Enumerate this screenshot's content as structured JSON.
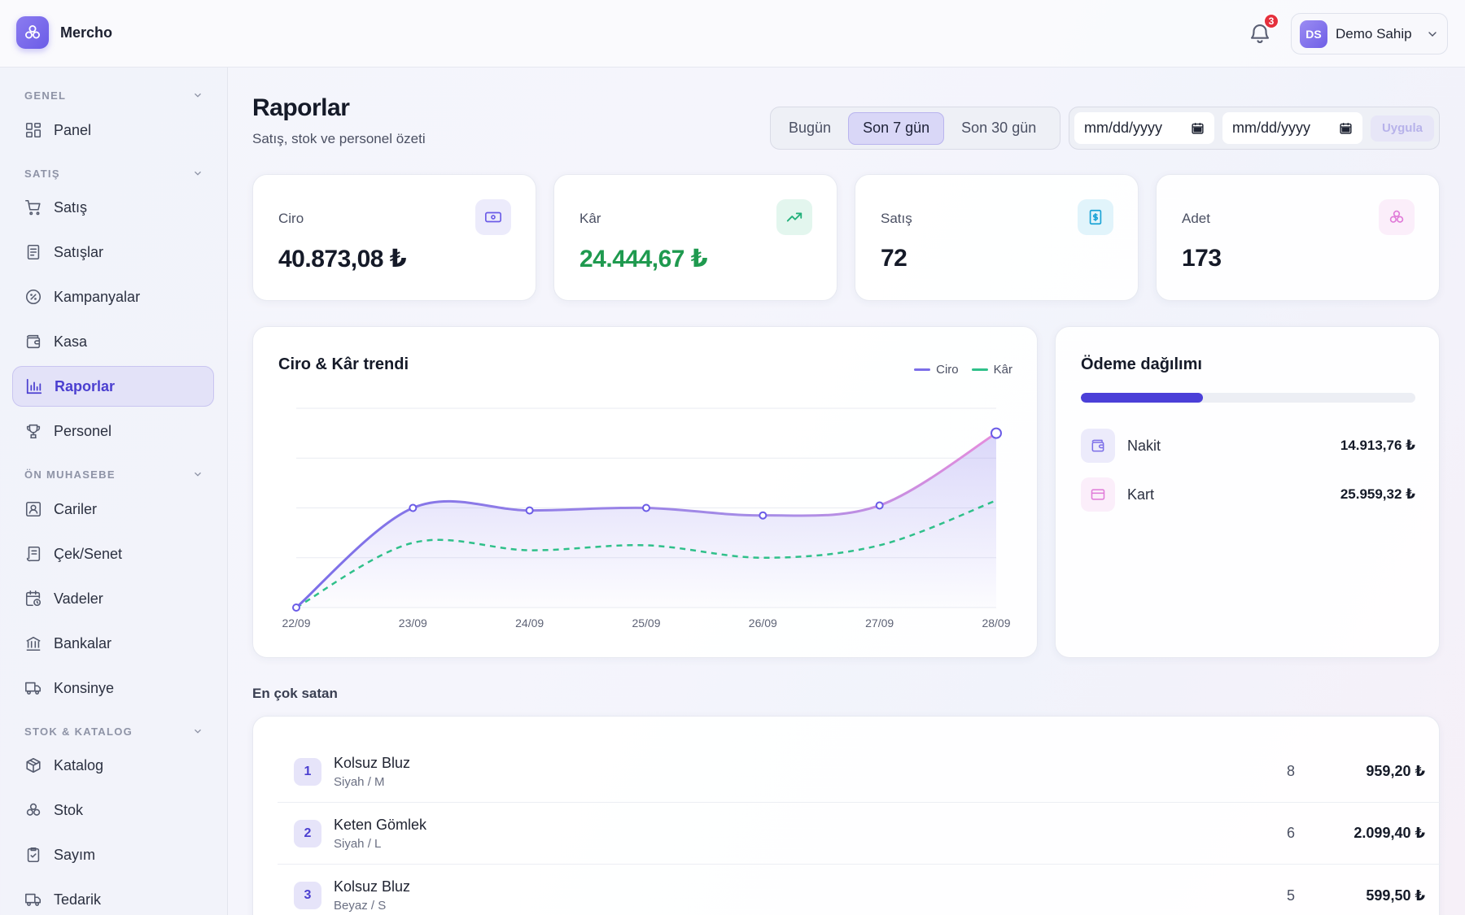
{
  "app": {
    "name": "Mercho"
  },
  "header": {
    "notifications_count": "3",
    "user": {
      "initials": "DS",
      "name": "Demo Sahip"
    }
  },
  "sidebar": {
    "sections": [
      {
        "label": "GENEL",
        "items": [
          {
            "label": "Panel",
            "icon": "grid-icon"
          }
        ]
      },
      {
        "label": "SATIŞ",
        "items": [
          {
            "label": "Satış",
            "icon": "cart-icon"
          },
          {
            "label": "Satışlar",
            "icon": "receipt-icon"
          },
          {
            "label": "Kampanyalar",
            "icon": "percent-icon"
          },
          {
            "label": "Kasa",
            "icon": "wallet-icon"
          },
          {
            "label": "Raporlar",
            "icon": "bar-chart-icon",
            "active": true
          },
          {
            "label": "Personel",
            "icon": "trophy-icon"
          }
        ]
      },
      {
        "label": "ÖN MUHASEBE",
        "items": [
          {
            "label": "Cariler",
            "icon": "contact-icon"
          },
          {
            "label": "Çek/Senet",
            "icon": "scroll-icon"
          },
          {
            "label": "Vadeler",
            "icon": "calendar-clock-icon"
          },
          {
            "label": "Bankalar",
            "icon": "bank-icon"
          },
          {
            "label": "Konsinye",
            "icon": "truck-icon"
          }
        ]
      },
      {
        "label": "STOK & KATALOG",
        "items": [
          {
            "label": "Katalog",
            "icon": "box-icon"
          },
          {
            "label": "Stok",
            "icon": "boxes-icon"
          },
          {
            "label": "Sayım",
            "icon": "clipboard-check-icon"
          },
          {
            "label": "Tedarik",
            "icon": "truck-icon"
          }
        ]
      }
    ]
  },
  "page": {
    "title": "Raporlar",
    "subtitle": "Satış, stok ve personel özeti",
    "ranges": [
      {
        "label": "Bugün",
        "active": false
      },
      {
        "label": "Son 7 gün",
        "active": true
      },
      {
        "label": "Son 30 gün",
        "active": false
      }
    ],
    "date_from": {
      "value": "mm/dd/yyyy"
    },
    "date_to": {
      "value": "mm/dd/yyyy"
    },
    "apply_label": "Uygula"
  },
  "kpis": [
    {
      "label": "Ciro",
      "value": "40.873,08 ₺",
      "icon": "banknote-icon",
      "accent": "#6b5ce7"
    },
    {
      "label": "Kâr",
      "value": "24.444,67 ₺",
      "icon": "trending-up-icon",
      "accent": "#22b07a"
    },
    {
      "label": "Satış",
      "value": "72",
      "icon": "receipt-dollar-icon",
      "accent": "#1aa3d6"
    },
    {
      "label": "Adet",
      "value": "173",
      "icon": "boxes-icon",
      "accent": "#e07ad8"
    }
  ],
  "trend": {
    "title": "Ciro & Kâr trendi",
    "legend": {
      "ciro": "Ciro",
      "kar": "Kâr"
    }
  },
  "chart_data": {
    "type": "line",
    "title": "Ciro & Kâr trendi",
    "categories": [
      "22/09",
      "23/09",
      "24/09",
      "25/09",
      "26/09",
      "27/09",
      "28/09"
    ],
    "ylim": [
      0,
      8000
    ],
    "grid": true,
    "legend_position": "top-right",
    "series": [
      {
        "name": "Ciro",
        "color": "#7b6ee8",
        "values": [
          0,
          4000,
          3900,
          4000,
          3700,
          4100,
          7000
        ]
      },
      {
        "name": "Kâr",
        "color": "#2fc08a",
        "values": [
          0,
          2600,
          2300,
          2500,
          2000,
          2500,
          4300
        ]
      }
    ]
  },
  "payments": {
    "title": "Ödeme dağılımı",
    "cash_share": 0.365,
    "rows": [
      {
        "label": "Nakit",
        "value": "14.913,76 ₺",
        "icon": "wallet-icon"
      },
      {
        "label": "Kart",
        "value": "25.959,32 ₺",
        "icon": "credit-card-icon"
      }
    ]
  },
  "top_selling": {
    "title": "En çok satan",
    "rows": [
      {
        "rank": "1",
        "name": "Kolsuz Bluz",
        "variant": "Siyah / M",
        "qty": "8",
        "amount": "959,20 ₺"
      },
      {
        "rank": "2",
        "name": "Keten Gömlek",
        "variant": "Siyah / L",
        "qty": "6",
        "amount": "2.099,40 ₺"
      },
      {
        "rank": "3",
        "name": "Kolsuz Bluz",
        "variant": "Beyaz / S",
        "qty": "5",
        "amount": "599,50 ₺"
      }
    ]
  }
}
